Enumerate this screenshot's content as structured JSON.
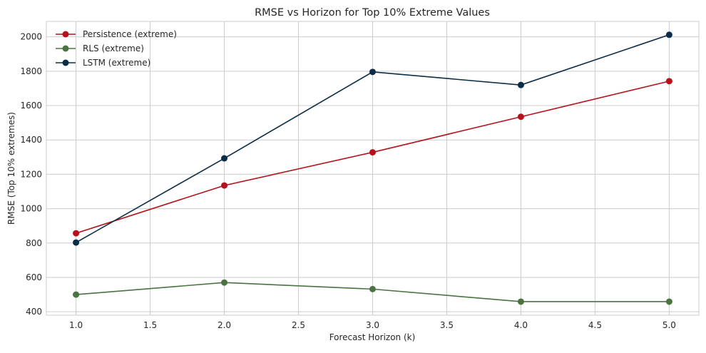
{
  "chart_data": {
    "type": "line",
    "title": "RMSE vs Horizon for Top 10% Extreme Values",
    "xlabel": "Forecast Horizon (k)",
    "ylabel": "RMSE (Top 10% extremes)",
    "x": [
      1.0,
      2.0,
      3.0,
      4.0,
      5.0
    ],
    "xlim": [
      0.8,
      5.2
    ],
    "ylim": [
      380,
      2090
    ],
    "xticks": [
      1.0,
      1.5,
      2.0,
      2.5,
      3.0,
      3.5,
      4.0,
      4.5,
      5.0
    ],
    "xtick_labels": [
      "1.0",
      "1.5",
      "2.0",
      "2.5",
      "3.0",
      "3.5",
      "4.0",
      "4.5",
      "5.0"
    ],
    "yticks": [
      400,
      600,
      800,
      1000,
      1200,
      1400,
      1600,
      1800,
      2000
    ],
    "ytick_labels": [
      "400",
      "600",
      "800",
      "1000",
      "1200",
      "1400",
      "1600",
      "1800",
      "2000"
    ],
    "grid": true,
    "legend_position": "top-left",
    "series": [
      {
        "name": "Persistence (extreme)",
        "color": "#b5121b",
        "marker": "circle",
        "values": [
          857,
          1135,
          1328,
          1535,
          1742
        ]
      },
      {
        "name": "RLS (extreme)",
        "color": "#4a7340",
        "marker": "circle",
        "values": [
          500,
          570,
          532,
          459,
          459
        ]
      },
      {
        "name": "LSTM (extreme)",
        "color": "#0a2d45",
        "marker": "circle",
        "values": [
          803,
          1293,
          1796,
          1720,
          2012
        ]
      }
    ]
  }
}
